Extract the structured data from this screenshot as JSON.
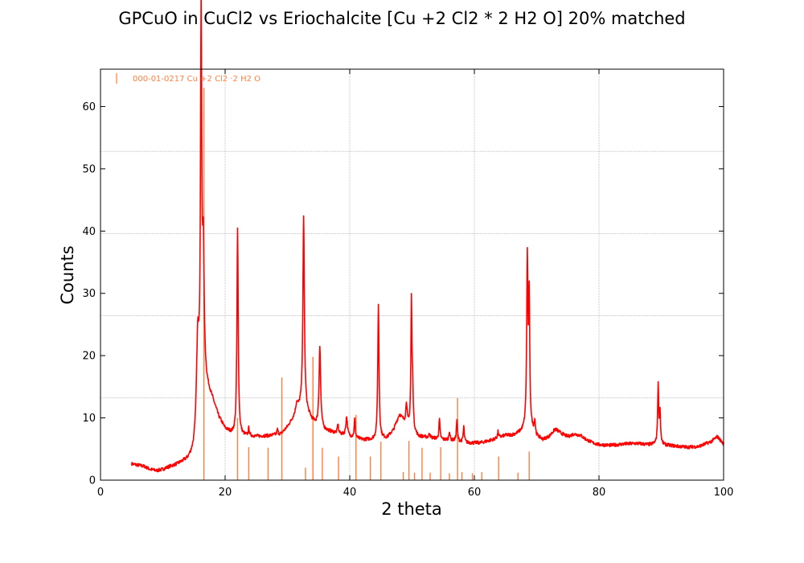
{
  "chart_data": {
    "type": "line",
    "title": "GPCuO in CuCl2 vs Eriochalcite [Cu +2 Cl2 * 2 H2 O] 20% matched",
    "xlabel": "2 theta",
    "ylabel": "Counts",
    "xlim": [
      0,
      100
    ],
    "ylim": [
      0,
      66
    ],
    "xticks": [
      0,
      20,
      40,
      60,
      80,
      100
    ],
    "yticks": [
      0,
      10,
      20,
      30,
      40,
      50,
      60
    ],
    "grid": {
      "vertical": [
        20,
        40,
        60,
        80
      ],
      "horizontal": [
        13.2,
        26.4,
        39.6,
        52.8
      ]
    },
    "legend": {
      "placement": "top-left",
      "entries": [
        {
          "label": "000-01-0217 Cu +2 Cl2 ·2 H2 O",
          "color": "#ff7f3f"
        }
      ]
    },
    "series": [
      {
        "kind": "line",
        "color": "#ff0000",
        "baseline": [
          [
            5,
            2.6
          ],
          [
            6,
            2.4
          ],
          [
            7,
            2.2
          ],
          [
            8,
            1.7
          ],
          [
            9,
            1.5
          ],
          [
            10,
            1.7
          ],
          [
            11,
            2.1
          ],
          [
            12,
            2.4
          ],
          [
            13,
            2.8
          ],
          [
            14,
            3.2
          ],
          [
            15,
            4.2
          ],
          [
            15.5,
            5.5
          ],
          [
            16.5,
            17
          ],
          [
            17,
            15
          ],
          [
            18,
            12.8
          ],
          [
            19,
            10
          ],
          [
            20,
            8.2
          ],
          [
            21,
            7.5
          ],
          [
            23,
            7.1
          ],
          [
            25,
            7
          ],
          [
            27,
            7.1
          ],
          [
            29,
            7.4
          ],
          [
            30,
            8.5
          ],
          [
            31,
            10
          ],
          [
            32,
            11.5
          ],
          [
            33,
            11
          ],
          [
            34,
            9.5
          ],
          [
            35,
            8.5
          ],
          [
            36,
            8
          ],
          [
            38,
            7.5
          ],
          [
            40,
            7
          ],
          [
            42,
            6.5
          ],
          [
            44,
            6.5
          ],
          [
            46,
            6.8
          ],
          [
            47,
            8
          ],
          [
            48,
            10.5
          ],
          [
            49,
            9
          ],
          [
            50,
            8
          ],
          [
            51,
            7
          ],
          [
            53,
            6.8
          ],
          [
            55,
            6.5
          ],
          [
            57,
            6.3
          ],
          [
            59,
            6
          ],
          [
            61,
            6
          ],
          [
            63,
            6.5
          ],
          [
            65,
            7.2
          ],
          [
            66,
            7.2
          ],
          [
            67,
            7.5
          ],
          [
            68,
            8
          ],
          [
            69,
            8.5
          ],
          [
            70,
            7
          ],
          [
            71,
            6.5
          ],
          [
            72,
            7
          ],
          [
            73,
            8.2
          ],
          [
            74,
            7.5
          ],
          [
            75,
            7
          ],
          [
            76,
            7.4
          ],
          [
            77,
            7.2
          ],
          [
            78,
            6.5
          ],
          [
            79,
            6
          ],
          [
            80,
            5.7
          ],
          [
            82,
            5.6
          ],
          [
            84,
            5.8
          ],
          [
            86,
            5.9
          ],
          [
            88,
            5.7
          ],
          [
            89,
            5.8
          ],
          [
            90,
            5.7
          ],
          [
            92,
            5.5
          ],
          [
            94,
            5.3
          ],
          [
            96,
            5.4
          ],
          [
            98,
            6.2
          ],
          [
            99,
            7
          ],
          [
            100,
            5.8
          ]
        ],
        "peaks": [
          [
            15.6,
            16,
            0.25
          ],
          [
            16.15,
            60,
            0.12
          ],
          [
            16.5,
            18,
            0.15
          ],
          [
            22.0,
            33,
            0.12
          ],
          [
            23.8,
            1.2,
            0.1
          ],
          [
            28.4,
            0.8,
            0.1
          ],
          [
            31.5,
            1.5,
            0.2
          ],
          [
            32.6,
            31,
            0.14
          ],
          [
            35.2,
            13,
            0.15
          ],
          [
            38.1,
            1.5,
            0.1
          ],
          [
            39.5,
            3,
            0.15
          ],
          [
            40.8,
            3,
            0.1
          ],
          [
            44.6,
            21.5,
            0.12
          ],
          [
            49.1,
            3.5,
            0.12
          ],
          [
            49.9,
            20.5,
            0.1
          ],
          [
            50.1,
            6,
            0.1
          ],
          [
            52.8,
            0.8,
            0.1
          ],
          [
            54.4,
            3.2,
            0.1
          ],
          [
            56.0,
            1.5,
            0.1
          ],
          [
            57.2,
            3.5,
            0.1
          ],
          [
            58.3,
            2.5,
            0.1
          ],
          [
            63.8,
            1,
            0.1
          ],
          [
            68.5,
            27,
            0.12
          ],
          [
            68.8,
            20,
            0.1
          ],
          [
            69.7,
            2,
            0.1
          ],
          [
            89.5,
            9.5,
            0.1
          ],
          [
            89.8,
            5,
            0.1
          ]
        ]
      },
      {
        "kind": "stick",
        "name": "000-01-0217 Cu +2 Cl2 ·2 H2 O",
        "color": "#ff7f3f",
        "x": [
          16.6,
          22.0,
          23.8,
          26.9,
          29.1,
          32.9,
          34.1,
          35.6,
          38.2,
          41.0,
          43.3,
          45.0,
          48.6,
          49.5,
          50.4,
          51.6,
          52.9,
          54.6,
          56.0,
          57.3,
          58.0,
          59.7,
          61.2,
          63.9,
          67.0,
          68.8
        ],
        "y": [
          63,
          10,
          5.3,
          5.2,
          16.5,
          2,
          19.8,
          5.2,
          3.8,
          10.5,
          3.8,
          6.2,
          1.3,
          6.3,
          1.2,
          5.2,
          1.2,
          5.3,
          1.1,
          13.2,
          1.3,
          1.1,
          1.3,
          3.8,
          1.2,
          4.6
        ]
      }
    ]
  }
}
